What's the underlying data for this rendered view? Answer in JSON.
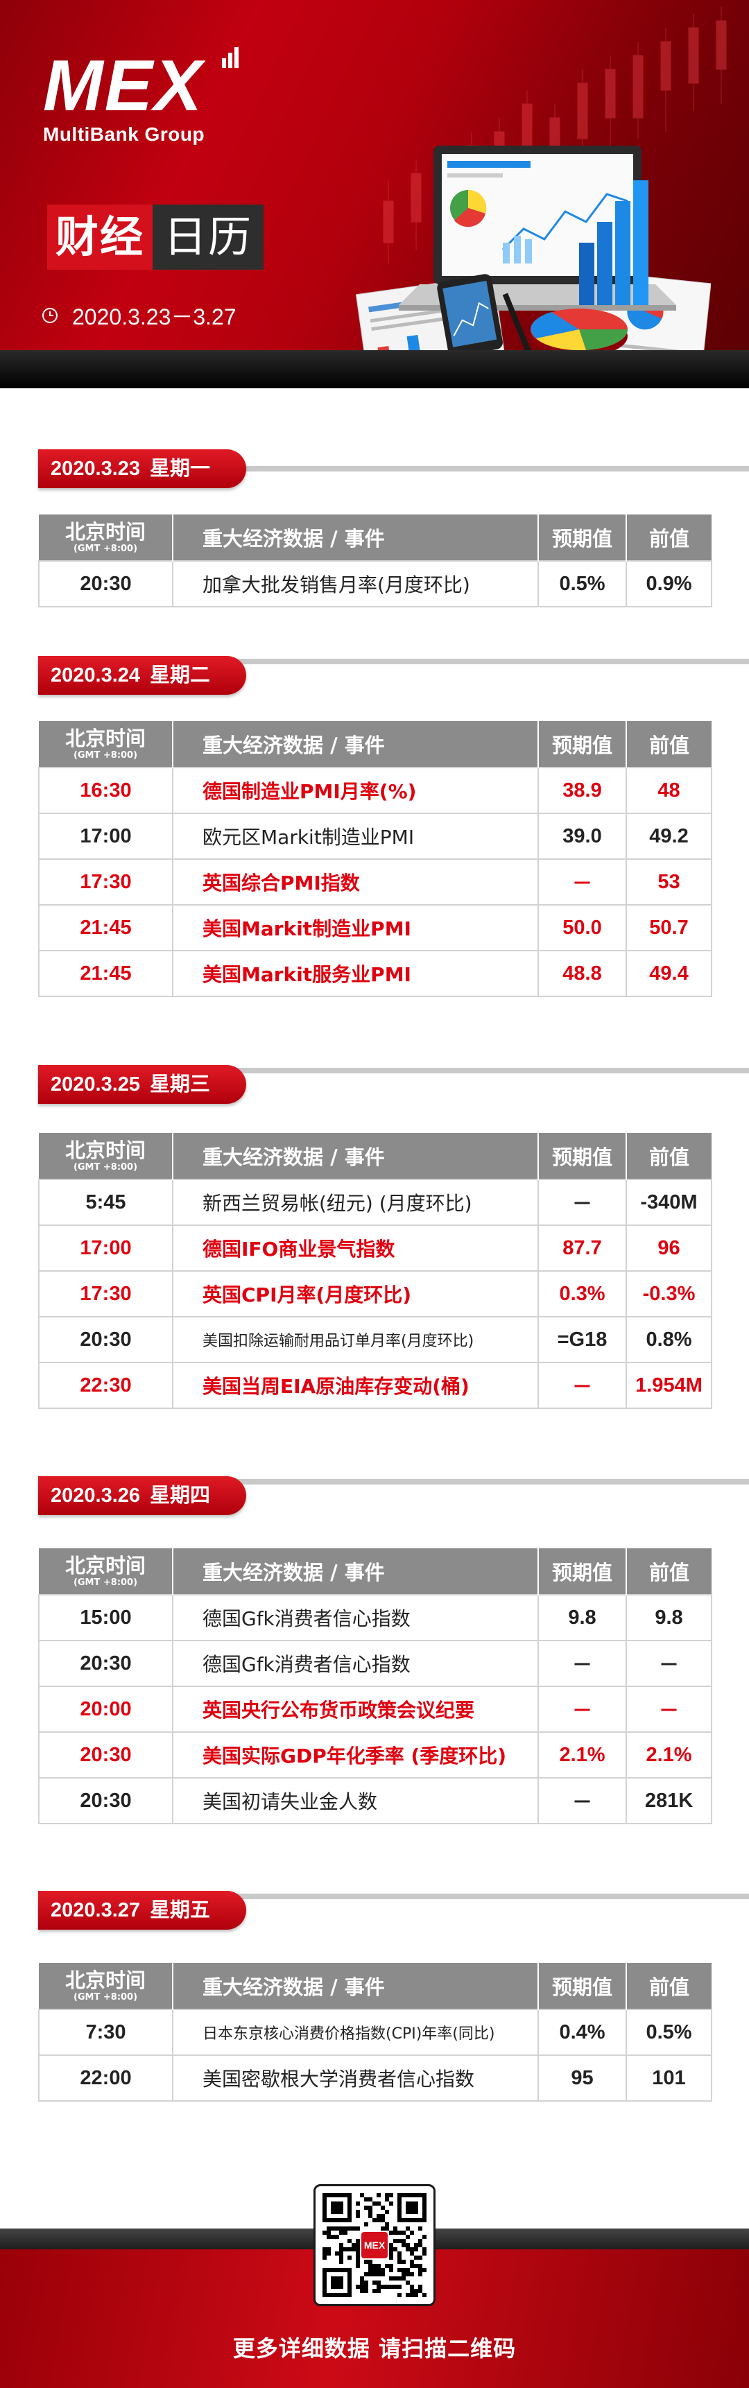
{
  "brand": {
    "logo_mark": "MEX",
    "logo_sub": "MultiBank Group"
  },
  "title": {
    "part_a": "财经",
    "part_b": "日历"
  },
  "date_range": "2020.3.23－3.27",
  "table_header": {
    "time": "北京时间",
    "gmt": "(GMT +8:00)",
    "event": "重大经济数据 / 事件",
    "expected": "预期值",
    "previous": "前值"
  },
  "days": [
    {
      "date": "2020.3.23",
      "weekday": "星期一",
      "rows": [
        {
          "time": "20:30",
          "event": "加拿大批发销售月率(月度环比)",
          "expected": "0.5%",
          "previous": "0.9%",
          "highlight": false
        }
      ]
    },
    {
      "date": "2020.3.24",
      "weekday": "星期二",
      "rows": [
        {
          "time": "16:30",
          "event": "德国制造业PMI月率(%)",
          "expected": "38.9",
          "previous": "48",
          "highlight": true
        },
        {
          "time": "17:00",
          "event": "欧元区Markit制造业PMI",
          "expected": "39.0",
          "previous": "49.2",
          "highlight": false
        },
        {
          "time": "17:30",
          "event": "英国综合PMI指数",
          "expected": "－",
          "previous": "53",
          "highlight": true
        },
        {
          "time": "21:45",
          "event": "美国Markit制造业PMI",
          "expected": "50.0",
          "previous": "50.7",
          "highlight": true
        },
        {
          "time": "21:45",
          "event": "美国Markit服务业PMI",
          "expected": "48.8",
          "previous": "49.4",
          "highlight": true
        }
      ]
    },
    {
      "date": "2020.3.25",
      "weekday": "星期三",
      "rows": [
        {
          "time": "5:45",
          "event": "新西兰贸易帐(纽元) (月度环比)",
          "expected": "－",
          "previous": "-340M",
          "highlight": false
        },
        {
          "time": "17:00",
          "event": "德国IFO商业景气指数",
          "expected": "87.7",
          "previous": "96",
          "highlight": true
        },
        {
          "time": "17:30",
          "event": "英国CPI月率(月度环比)",
          "expected": "0.3%",
          "previous": "-0.3%",
          "highlight": true
        },
        {
          "time": "20:30",
          "event": "美国扣除运输耐用品订单月率(月度环比)",
          "expected": "=G18",
          "previous": "0.8%",
          "highlight": false,
          "small": true
        },
        {
          "time": "22:30",
          "event": "美国当周EIA原油库存变动(桶)",
          "expected": "－",
          "previous": "1.954M",
          "highlight": true
        }
      ]
    },
    {
      "date": "2020.3.26",
      "weekday": "星期四",
      "rows": [
        {
          "time": "15:00",
          "event": "德国Gfk消费者信心指数",
          "expected": "9.8",
          "previous": "9.8",
          "highlight": false
        },
        {
          "time": "20:30",
          "event": "德国Gfk消费者信心指数",
          "expected": "－",
          "previous": "－",
          "highlight": false
        },
        {
          "time": "20:00",
          "event": "英国央行公布货币政策会议纪要",
          "expected": "－",
          "previous": "－",
          "highlight": true
        },
        {
          "time": "20:30",
          "event": "美国实际GDP年化季率 (季度环比)",
          "expected": "2.1%",
          "previous": "2.1%",
          "highlight": true
        },
        {
          "time": "20:30",
          "event": "美国初请失业金人数",
          "expected": "－",
          "previous": "281K",
          "highlight": false
        }
      ]
    },
    {
      "date": "2020.3.27",
      "weekday": "星期五",
      "rows": [
        {
          "time": "7:30",
          "event": "日本东京核心消费价格指数(CPI)年率(同比)",
          "expected": "0.4%",
          "previous": "0.5%",
          "highlight": false,
          "small": true
        },
        {
          "time": "22:00",
          "event": "美国密歇根大学消费者信心指数",
          "expected": "95",
          "previous": "101",
          "highlight": false
        }
      ]
    }
  ],
  "footer": {
    "cta": "更多详细数据 请扫描二维码",
    "qr_logo": "MEX"
  },
  "colors": {
    "brand_red": "#d4101c",
    "highlight_red": "#e0000f",
    "header_gray": "#8b8b8b"
  }
}
